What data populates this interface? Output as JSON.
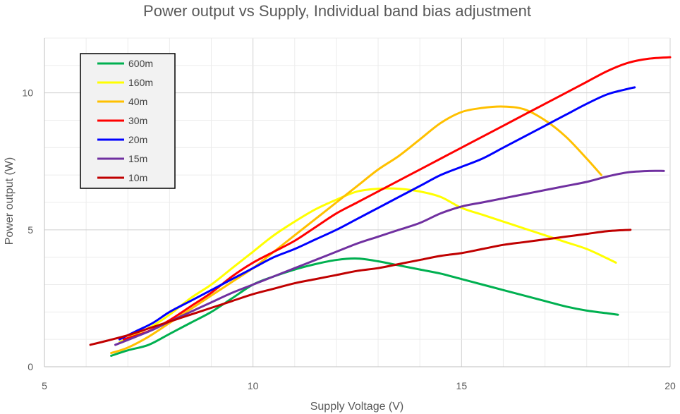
{
  "chart_data": {
    "type": "line",
    "title": "Power output vs Supply, Individual band bias adjustment",
    "xlabel": "Supply Voltage (V)",
    "ylabel": "Power output (W)",
    "xlim": [
      5,
      20
    ],
    "ylim": [
      0,
      12
    ],
    "x_ticks": [
      5,
      10,
      15,
      20
    ],
    "y_ticks": [
      0,
      5,
      10
    ],
    "grid": "on",
    "legend_position": "top-left",
    "series": [
      {
        "name": "600m",
        "color": "#00B050",
        "points": [
          [
            6.6,
            0.4
          ],
          [
            7.0,
            0.6
          ],
          [
            7.5,
            0.8
          ],
          [
            8.0,
            1.2
          ],
          [
            8.5,
            1.6
          ],
          [
            9.0,
            2.0
          ],
          [
            9.5,
            2.5
          ],
          [
            10.0,
            3.0
          ],
          [
            10.5,
            3.3
          ],
          [
            11.0,
            3.55
          ],
          [
            11.5,
            3.75
          ],
          [
            12.0,
            3.9
          ],
          [
            12.5,
            3.95
          ],
          [
            13.0,
            3.85
          ],
          [
            13.5,
            3.7
          ],
          [
            14.0,
            3.55
          ],
          [
            14.5,
            3.4
          ],
          [
            15.0,
            3.2
          ],
          [
            15.5,
            3.0
          ],
          [
            16.0,
            2.8
          ],
          [
            16.5,
            2.6
          ],
          [
            17.0,
            2.4
          ],
          [
            17.5,
            2.2
          ],
          [
            18.0,
            2.05
          ],
          [
            18.5,
            1.95
          ],
          [
            18.75,
            1.9
          ]
        ]
      },
      {
        "name": "160m",
        "color": "#FFFF00",
        "points": [
          [
            6.8,
            0.9
          ],
          [
            7.2,
            1.2
          ],
          [
            7.6,
            1.5
          ],
          [
            8.0,
            1.9
          ],
          [
            8.5,
            2.5
          ],
          [
            9.0,
            3.0
          ],
          [
            9.5,
            3.6
          ],
          [
            10.0,
            4.2
          ],
          [
            10.5,
            4.8
          ],
          [
            11.0,
            5.3
          ],
          [
            11.5,
            5.75
          ],
          [
            12.0,
            6.1
          ],
          [
            12.5,
            6.4
          ],
          [
            13.0,
            6.5
          ],
          [
            13.5,
            6.5
          ],
          [
            14.0,
            6.4
          ],
          [
            14.5,
            6.2
          ],
          [
            15.0,
            5.8
          ],
          [
            15.5,
            5.55
          ],
          [
            16.0,
            5.3
          ],
          [
            16.5,
            5.05
          ],
          [
            17.0,
            4.8
          ],
          [
            17.5,
            4.55
          ],
          [
            18.0,
            4.3
          ],
          [
            18.5,
            3.95
          ],
          [
            18.7,
            3.8
          ]
        ]
      },
      {
        "name": "40m",
        "color": "#FFC000",
        "points": [
          [
            6.6,
            0.5
          ],
          [
            7.0,
            0.7
          ],
          [
            7.5,
            1.1
          ],
          [
            8.0,
            1.6
          ],
          [
            8.5,
            2.1
          ],
          [
            9.0,
            2.6
          ],
          [
            9.5,
            3.1
          ],
          [
            10.0,
            3.6
          ],
          [
            10.5,
            4.2
          ],
          [
            11.0,
            4.8
          ],
          [
            11.5,
            5.4
          ],
          [
            12.0,
            6.0
          ],
          [
            12.5,
            6.6
          ],
          [
            13.0,
            7.2
          ],
          [
            13.5,
            7.7
          ],
          [
            14.0,
            8.3
          ],
          [
            14.5,
            8.9
          ],
          [
            15.0,
            9.3
          ],
          [
            15.5,
            9.45
          ],
          [
            16.0,
            9.5
          ],
          [
            16.5,
            9.4
          ],
          [
            17.0,
            9.0
          ],
          [
            17.5,
            8.4
          ],
          [
            18.0,
            7.6
          ],
          [
            18.35,
            7.0
          ]
        ]
      },
      {
        "name": "30m",
        "color": "#FF0000",
        "points": [
          [
            6.9,
            1.0
          ],
          [
            7.5,
            1.3
          ],
          [
            8.0,
            1.7
          ],
          [
            8.5,
            2.2
          ],
          [
            9.0,
            2.7
          ],
          [
            9.5,
            3.3
          ],
          [
            10.0,
            3.8
          ],
          [
            10.5,
            4.2
          ],
          [
            11.0,
            4.6
          ],
          [
            11.5,
            5.1
          ],
          [
            12.0,
            5.6
          ],
          [
            12.5,
            6.0
          ],
          [
            13.0,
            6.4
          ],
          [
            13.5,
            6.8
          ],
          [
            14.0,
            7.2
          ],
          [
            14.5,
            7.6
          ],
          [
            15.0,
            8.0
          ],
          [
            15.5,
            8.4
          ],
          [
            16.0,
            8.8
          ],
          [
            16.5,
            9.2
          ],
          [
            17.0,
            9.6
          ],
          [
            17.5,
            10.0
          ],
          [
            18.0,
            10.4
          ],
          [
            18.5,
            10.8
          ],
          [
            19.0,
            11.1
          ],
          [
            19.5,
            11.25
          ],
          [
            20.0,
            11.3
          ]
        ]
      },
      {
        "name": "20m",
        "color": "#0000FF",
        "points": [
          [
            6.8,
            1.0
          ],
          [
            7.2,
            1.3
          ],
          [
            7.6,
            1.6
          ],
          [
            8.0,
            2.0
          ],
          [
            8.5,
            2.4
          ],
          [
            9.0,
            2.8
          ],
          [
            9.5,
            3.2
          ],
          [
            10.0,
            3.6
          ],
          [
            10.5,
            4.0
          ],
          [
            11.0,
            4.3
          ],
          [
            11.5,
            4.65
          ],
          [
            12.0,
            5.0
          ],
          [
            12.5,
            5.4
          ],
          [
            13.0,
            5.8
          ],
          [
            13.5,
            6.2
          ],
          [
            14.0,
            6.6
          ],
          [
            14.5,
            7.0
          ],
          [
            15.0,
            7.3
          ],
          [
            15.5,
            7.6
          ],
          [
            16.0,
            8.0
          ],
          [
            16.5,
            8.4
          ],
          [
            17.0,
            8.8
          ],
          [
            17.5,
            9.2
          ],
          [
            18.0,
            9.6
          ],
          [
            18.5,
            9.95
          ],
          [
            19.0,
            10.15
          ],
          [
            19.15,
            10.2
          ]
        ]
      },
      {
        "name": "15m",
        "color": "#7030A0",
        "points": [
          [
            6.7,
            0.8
          ],
          [
            7.2,
            1.1
          ],
          [
            7.6,
            1.35
          ],
          [
            8.0,
            1.65
          ],
          [
            8.5,
            2.0
          ],
          [
            9.0,
            2.35
          ],
          [
            9.5,
            2.7
          ],
          [
            10.0,
            3.0
          ],
          [
            10.5,
            3.3
          ],
          [
            11.0,
            3.6
          ],
          [
            11.5,
            3.9
          ],
          [
            12.0,
            4.2
          ],
          [
            12.5,
            4.5
          ],
          [
            13.0,
            4.75
          ],
          [
            13.5,
            5.0
          ],
          [
            14.0,
            5.25
          ],
          [
            14.5,
            5.6
          ],
          [
            15.0,
            5.85
          ],
          [
            15.5,
            6.0
          ],
          [
            16.0,
            6.15
          ],
          [
            16.5,
            6.3
          ],
          [
            17.0,
            6.45
          ],
          [
            17.5,
            6.6
          ],
          [
            18.0,
            6.75
          ],
          [
            18.5,
            6.95
          ],
          [
            19.0,
            7.1
          ],
          [
            19.5,
            7.15
          ],
          [
            19.85,
            7.15
          ]
        ]
      },
      {
        "name": "10m",
        "color": "#C00000",
        "points": [
          [
            6.1,
            0.8
          ],
          [
            6.5,
            0.95
          ],
          [
            7.0,
            1.15
          ],
          [
            7.5,
            1.4
          ],
          [
            8.0,
            1.65
          ],
          [
            8.5,
            1.9
          ],
          [
            9.0,
            2.15
          ],
          [
            9.5,
            2.4
          ],
          [
            10.0,
            2.65
          ],
          [
            10.5,
            2.85
          ],
          [
            11.0,
            3.05
          ],
          [
            11.5,
            3.2
          ],
          [
            12.0,
            3.35
          ],
          [
            12.5,
            3.5
          ],
          [
            13.0,
            3.6
          ],
          [
            13.5,
            3.75
          ],
          [
            14.0,
            3.9
          ],
          [
            14.5,
            4.05
          ],
          [
            15.0,
            4.15
          ],
          [
            15.5,
            4.3
          ],
          [
            16.0,
            4.45
          ],
          [
            16.5,
            4.55
          ],
          [
            17.0,
            4.65
          ],
          [
            17.5,
            4.75
          ],
          [
            18.0,
            4.85
          ],
          [
            18.5,
            4.95
          ],
          [
            19.05,
            5.0
          ]
        ]
      }
    ]
  }
}
